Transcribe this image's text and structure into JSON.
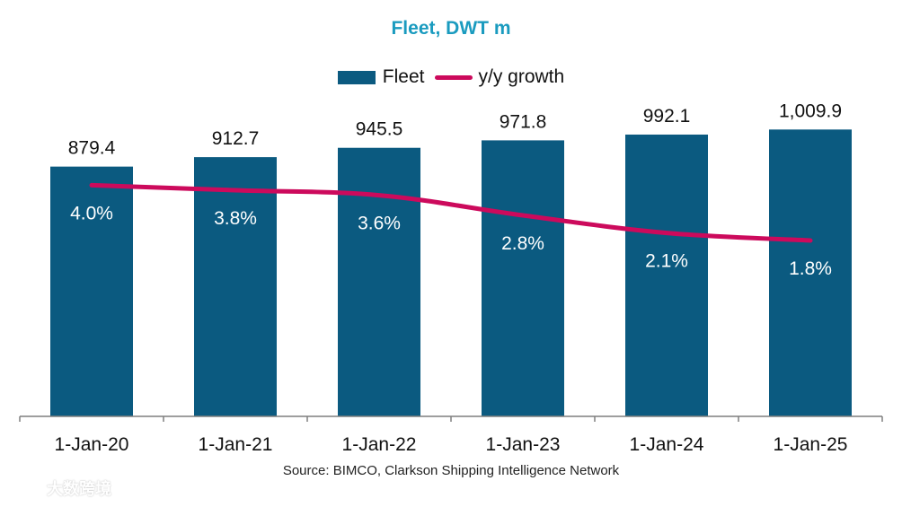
{
  "chart_data": {
    "type": "bar",
    "title": "Fleet, DWT m",
    "categories": [
      "1-Jan-20",
      "1-Jan-21",
      "1-Jan-22",
      "1-Jan-23",
      "1-Jan-24",
      "1-Jan-25"
    ],
    "series": [
      {
        "name": "Fleet",
        "kind": "bar",
        "axis": "primary",
        "values": [
          879.4,
          912.7,
          945.5,
          971.8,
          992.1,
          1009.9
        ],
        "labels": [
          "879.4",
          "912.7",
          "945.5",
          "971.8",
          "992.1",
          "1,009.9"
        ]
      },
      {
        "name": "y/y growth",
        "kind": "line",
        "axis": "secondary",
        "unit": "%",
        "values": [
          4.0,
          3.8,
          3.6,
          2.8,
          2.1,
          1.8
        ],
        "labels": [
          "4.0%",
          "3.8%",
          "3.6%",
          "2.8%",
          "2.1%",
          "1.8%"
        ]
      }
    ],
    "ylim": [
      0,
      1150
    ],
    "y2lim": [
      -5.2,
      7.8
    ],
    "xlabel": "",
    "ylabel": "",
    "grid": false,
    "legend": "top-center",
    "source": "Source: BIMCO, Clarkson Shipping Intelligence Network"
  },
  "colors": {
    "title": "#1a9bbf",
    "bar": "#0b5a80",
    "line": "#cc0a5c",
    "axis": "#7f7f7f",
    "bar_label_inside": "#ffffff",
    "text": "#111111"
  },
  "watermark": {
    "text": "大数跨境",
    "logo_icon": "rocket-logo-icon"
  }
}
